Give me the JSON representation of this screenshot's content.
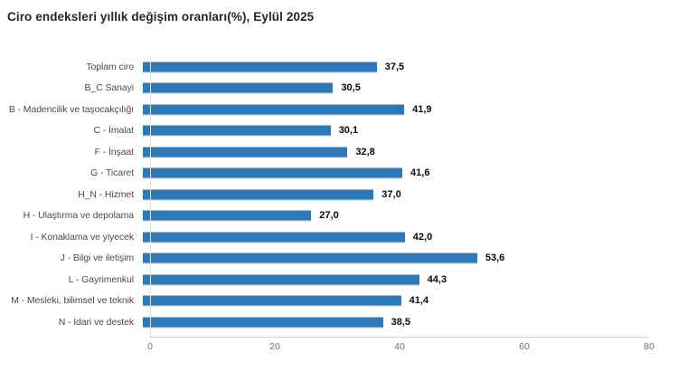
{
  "chart_data": {
    "type": "bar",
    "orientation": "horizontal",
    "title": "Ciro endeksleri yıllık değişim oranları(%), Eylül 2025",
    "categories": [
      "Toplam ciro",
      "B_C Sanayi",
      "B - Madencilik ve taşocakçılığı",
      "C - İmalat",
      "F - İnşaat",
      "G - Ticaret",
      "H_N - Hizmet",
      "H - Ulaştırma ve depolama",
      "I - Konaklama ve yiyecek",
      "J - Bilgi ve iletişim",
      "L - Gayrimenkul",
      "M - Mesleki, bilimsel ve teknik",
      "N - İdari ve destek"
    ],
    "values": [
      37.5,
      30.5,
      41.9,
      30.1,
      32.8,
      41.6,
      37.0,
      27.0,
      42.0,
      53.6,
      44.3,
      41.4,
      38.5
    ],
    "value_labels": [
      "37,5",
      "30,5",
      "41,9",
      "30,1",
      "32,8",
      "41,6",
      "37,0",
      "27,0",
      "42,0",
      "53,6",
      "44,3",
      "41,4",
      "38,5"
    ],
    "xlabel": "",
    "ylabel": "",
    "xlim": [
      0,
      80
    ],
    "ticks": [
      0,
      20,
      40,
      60,
      80
    ],
    "tick_labels": [
      "0",
      "20",
      "40",
      "60",
      "80"
    ],
    "bar_color": "#2E79B9",
    "grid": "off",
    "legend": "none"
  },
  "colors": {
    "title": "#262626",
    "category_label": "#4a4a4a",
    "value_label": "#0a0a0a",
    "axis_line": "#cfcfcf",
    "tick_label": "#6e6e6e"
  }
}
